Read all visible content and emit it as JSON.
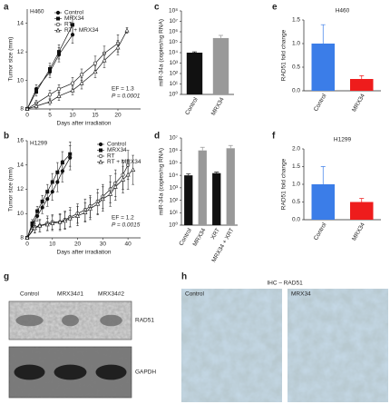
{
  "chart_data": [
    {
      "panel": "a",
      "type": "line",
      "annotations": [
        "H460",
        "EF = 1.3",
        "P = 0.0001"
      ],
      "xlabel": "Days after irradiation",
      "ylabel": "Tumor size (mm)",
      "xlim": [
        0,
        25
      ],
      "xticks": [
        0,
        5,
        10,
        15,
        20
      ],
      "ylim": [
        8,
        15
      ],
      "yticks": [
        8,
        10,
        12,
        14
      ],
      "legend": "upper-left",
      "series": [
        {
          "name": "Control",
          "color": "#111111",
          "marker": "circle-filled",
          "x": [
            0,
            2,
            5,
            7,
            10
          ],
          "values": [
            8,
            9.4,
            10.6,
            11.8,
            13.2
          ],
          "errors": [
            0.1,
            0.3,
            0.4,
            0.5,
            0.6
          ]
        },
        {
          "name": "MRX34",
          "color": "#111111",
          "marker": "square-filled",
          "x": [
            0,
            2,
            5,
            7,
            10
          ],
          "values": [
            8,
            9.2,
            10.8,
            12.0,
            13.9
          ],
          "errors": [
            0.1,
            0.3,
            0.4,
            0.5,
            0.6
          ]
        },
        {
          "name": "RT",
          "color": "#111111",
          "marker": "circle-open",
          "x": [
            0,
            2,
            5,
            7,
            10,
            12,
            15,
            17,
            20
          ],
          "values": [
            8,
            8.4,
            9.0,
            9.4,
            9.8,
            10.4,
            11.2,
            11.9,
            12.6
          ],
          "errors": [
            0.1,
            0.2,
            0.3,
            0.3,
            0.4,
            0.4,
            0.5,
            0.5,
            0.6
          ]
        },
        {
          "name": "RT + MRX34",
          "color": "#111111",
          "marker": "triangle-open",
          "x": [
            0,
            2,
            5,
            7,
            10,
            12,
            15,
            17,
            20,
            22
          ],
          "values": [
            8,
            8.2,
            8.5,
            8.9,
            9.3,
            9.8,
            10.6,
            11.4,
            12.3,
            13.5
          ],
          "errors": [
            0.1,
            0.2,
            0.2,
            0.3,
            0.3,
            0.4,
            0.4,
            0.5,
            0.5,
            0.2
          ]
        }
      ]
    },
    {
      "panel": "b",
      "type": "line",
      "annotations": [
        "H1299",
        "EF = 1.2",
        "P = 0.0015"
      ],
      "xlabel": "Days after irradiation",
      "ylabel": "Tumor size (mm)",
      "xlim": [
        0,
        45
      ],
      "xticks": [
        0,
        10,
        20,
        30,
        40
      ],
      "ylim": [
        8,
        16
      ],
      "yticks": [
        8,
        10,
        12,
        14,
        16
      ],
      "legend": "upper-right",
      "series": [
        {
          "name": "Control",
          "color": "#111111",
          "marker": "circle-filled",
          "x": [
            0,
            2,
            4,
            6,
            8,
            10,
            12,
            14,
            17
          ],
          "values": [
            8,
            9,
            9.8,
            10.5,
            11.2,
            11.8,
            12.6,
            13.5,
            14.6
          ],
          "errors": [
            0.1,
            0.3,
            0.4,
            0.5,
            0.6,
            0.7,
            0.8,
            0.9,
            1.0
          ]
        },
        {
          "name": "MRX34",
          "color": "#111111",
          "marker": "square-filled",
          "x": [
            0,
            2,
            4,
            6,
            8,
            10,
            12,
            14,
            17
          ],
          "values": [
            8,
            9.2,
            10.2,
            11,
            11.8,
            12.6,
            13.4,
            14.2,
            14.9
          ],
          "errors": [
            0.1,
            0.3,
            0.4,
            0.5,
            0.6,
            0.7,
            0.8,
            0.9,
            1.0
          ]
        },
        {
          "name": "RT",
          "color": "#111111",
          "marker": "circle-open",
          "x": [
            0,
            3,
            5,
            8,
            10,
            13,
            15,
            17,
            20,
            23,
            25,
            28,
            30,
            33,
            35,
            38,
            40
          ],
          "values": [
            8,
            8.9,
            9,
            9.2,
            9.3,
            9.3,
            9.5,
            9.7,
            10,
            10.3,
            10.6,
            11,
            11.4,
            12,
            12.5,
            13.2,
            14
          ],
          "errors": [
            0.1,
            0.5,
            0.5,
            0.6,
            0.6,
            0.7,
            0.7,
            0.8,
            0.8,
            0.9,
            0.9,
            1,
            1,
            1.1,
            1.1,
            1.2,
            1.2
          ]
        },
        {
          "name": "RT + MRX34",
          "color": "#111111",
          "marker": "triangle-open",
          "x": [
            0,
            3,
            5,
            8,
            10,
            13,
            15,
            17,
            20,
            23,
            25,
            28,
            30,
            33,
            35,
            38,
            40,
            42
          ],
          "values": [
            8,
            8.8,
            9,
            9.1,
            9.2,
            9.3,
            9.4,
            9.6,
            9.8,
            10.1,
            10.4,
            10.8,
            11.2,
            11.6,
            12.2,
            12.8,
            13.2,
            13.6
          ],
          "errors": [
            0.1,
            0.4,
            0.5,
            0.5,
            0.6,
            0.6,
            0.7,
            0.7,
            0.8,
            0.8,
            0.9,
            0.9,
            1,
            1,
            1.1,
            1.1,
            1.2,
            1.2
          ]
        }
      ]
    },
    {
      "panel": "c",
      "type": "bar",
      "log": true,
      "ylabel": "miR-34a (copies/ng RNA)",
      "categories": [
        "Control",
        "MRX34"
      ],
      "values": [
        10000,
        250000
      ],
      "errors": [
        2000,
        200000
      ],
      "colors": [
        "#111111",
        "#999999"
      ],
      "ylim": [
        1,
        100000000
      ],
      "yticks": [
        {
          "value": 1,
          "label": "10⁰"
        },
        {
          "value": 10,
          "label": "10¹"
        },
        {
          "value": 100,
          "label": "10²"
        },
        {
          "value": 1000,
          "label": "10³"
        },
        {
          "value": 10000,
          "label": "10⁴"
        },
        {
          "value": 100000,
          "label": "10⁵"
        },
        {
          "value": 1000000,
          "label": "10⁶"
        },
        {
          "value": 10000000,
          "label": "10⁷"
        },
        {
          "value": 100000000,
          "label": "10⁸"
        }
      ]
    },
    {
      "panel": "d",
      "type": "bar",
      "log": true,
      "ylabel": "miR-34a (copies/ng RNA)",
      "categories": [
        "Control",
        "MRX34",
        "XRT",
        "MRX34 + XRT"
      ],
      "values": [
        10000,
        1000000,
        15000,
        1500000
      ],
      "errors": [
        3000,
        800000,
        3000,
        1000000
      ],
      "colors": [
        "#111111",
        "#999999",
        "#111111",
        "#999999"
      ],
      "ylim": [
        1,
        10000000
      ],
      "yticks": [
        {
          "value": 1,
          "label": "10⁰"
        },
        {
          "value": 10,
          "label": "10¹"
        },
        {
          "value": 100,
          "label": "10²"
        },
        {
          "value": 1000,
          "label": "10³"
        },
        {
          "value": 10000,
          "label": "10⁴"
        },
        {
          "value": 100000,
          "label": "10⁵"
        },
        {
          "value": 1000000,
          "label": "10⁶"
        },
        {
          "value": 10000000,
          "label": "10⁷"
        }
      ]
    },
    {
      "panel": "e",
      "type": "bar",
      "title": "H460",
      "ylabel": "RAD51 fold change",
      "categories": [
        "Control",
        "MRX34"
      ],
      "values": [
        1.0,
        0.25
      ],
      "errors": [
        0.4,
        0.07
      ],
      "colors": [
        "#3b7de8",
        "#ee1c1c"
      ],
      "ylim": [
        0,
        1.5
      ],
      "yticks": [
        {
          "value": 0,
          "label": "0.0"
        },
        0.5,
        {
          "value": 1,
          "label": "1.0"
        },
        1.5
      ]
    },
    {
      "panel": "f",
      "type": "bar",
      "title": "H1299",
      "ylabel": "RAD51 fold change",
      "categories": [
        "Control",
        "MRX34"
      ],
      "values": [
        1.0,
        0.5
      ],
      "errors": [
        0.5,
        0.1
      ],
      "colors": [
        "#3b7de8",
        "#ee1c1c"
      ],
      "ylim": [
        0,
        2
      ],
      "yticks": [
        {
          "value": 0,
          "label": "0.0"
        },
        0.5,
        {
          "value": 1,
          "label": "1.0"
        },
        1.5,
        {
          "value": 2,
          "label": "2.0"
        }
      ]
    },
    {
      "panel": "g",
      "type": "blot",
      "lanes": [
        "Control",
        "MRX34#1",
        "MRX34#2"
      ],
      "bands": [
        "RAD51",
        "GAPDH"
      ]
    },
    {
      "panel": "h",
      "type": "micrograph",
      "title": "IHC – RAD51",
      "images": [
        "Control",
        "MRX34"
      ]
    }
  ]
}
